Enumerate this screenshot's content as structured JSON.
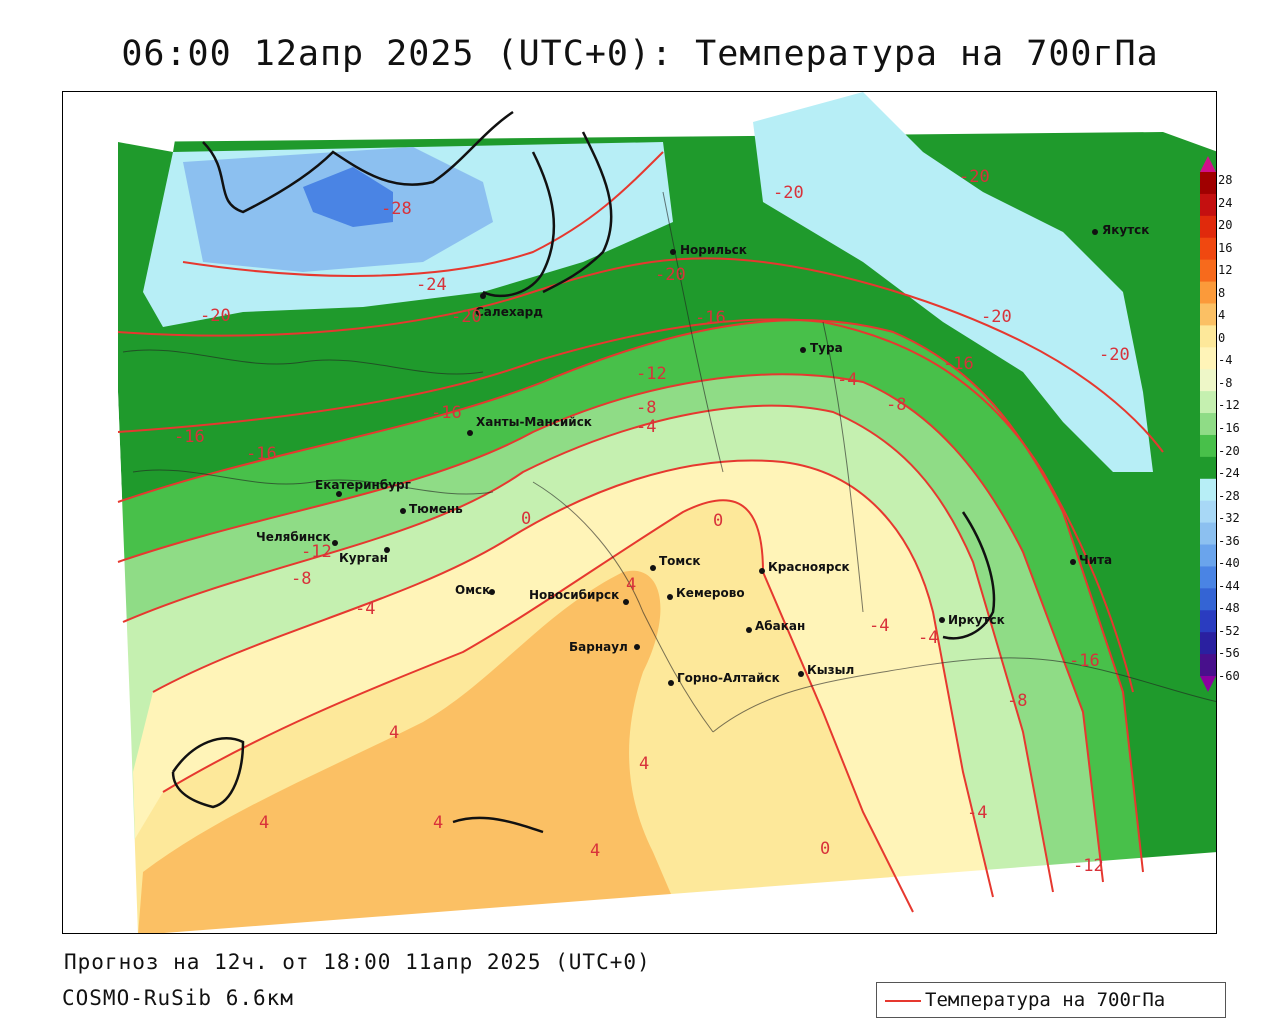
{
  "title": "06:00 12апр 2025 (UTC+0): Температура на 700гПа",
  "forecast": "Прогноз на 12ч. от 18:00 11апр 2025 (UTC+0)",
  "model": "COSMO-RuSib 6.6км",
  "legend": {
    "label": "Температура на 700гПа",
    "color": "#e6382f"
  },
  "colorbar": {
    "labels": [
      "28",
      "24",
      "20",
      "16",
      "12",
      "8",
      "4",
      "0",
      "-4",
      "-8",
      "-12",
      "-16",
      "-20",
      "-24",
      "-28",
      "-32",
      "-36",
      "-40",
      "-44",
      "-48",
      "-52",
      "-56",
      "-60"
    ],
    "colors": [
      "#a00000",
      "#c41010",
      "#e02a0c",
      "#f04810",
      "#f76a1c",
      "#fb9a3a",
      "#fbc064",
      "#fde89a",
      "#fff4b8",
      "#eef7c8",
      "#c5f0b0",
      "#8fdc86",
      "#48c04a",
      "#1f9a2c",
      "#b7eef6",
      "#a8d8f6",
      "#8cc0f0",
      "#6aa4ec",
      "#4a84e4",
      "#3464d4",
      "#2a3cc0",
      "#2a20a0",
      "#48108c",
      "#8a00a0",
      "#d0108a"
    ]
  },
  "cities": [
    {
      "name": "Норильск"
    },
    {
      "name": "Якутск"
    },
    {
      "name": "Салехард"
    },
    {
      "name": "Тура"
    },
    {
      "name": "Ханты-Мансийск"
    },
    {
      "name": "Екатеринбург"
    },
    {
      "name": "Тюмень"
    },
    {
      "name": "Челябинск"
    },
    {
      "name": "Курган"
    },
    {
      "name": "Омск"
    },
    {
      "name": "Томск"
    },
    {
      "name": "Новосибирск"
    },
    {
      "name": "Кемерово"
    },
    {
      "name": "Красноярск"
    },
    {
      "name": "Барнаул"
    },
    {
      "name": "Абакан"
    },
    {
      "name": "Иркутск"
    },
    {
      "name": "Чита"
    },
    {
      "name": "Кызыл"
    },
    {
      "name": "Горно-Алтайск"
    }
  ],
  "isoline_labels": [
    "-28",
    "-24",
    "-20",
    "-20",
    "-20",
    "-20",
    "-20",
    "-20",
    "-20",
    "-16",
    "-16",
    "-16",
    "-16",
    "-16",
    "-16",
    "-12",
    "-12",
    "-12",
    "-8",
    "-8",
    "-8",
    "-8",
    "-4",
    "-4",
    "-4",
    "-4",
    "-4",
    "-4",
    "0",
    "0",
    "0",
    "4",
    "4",
    "4",
    "4",
    "4",
    "4"
  ]
}
